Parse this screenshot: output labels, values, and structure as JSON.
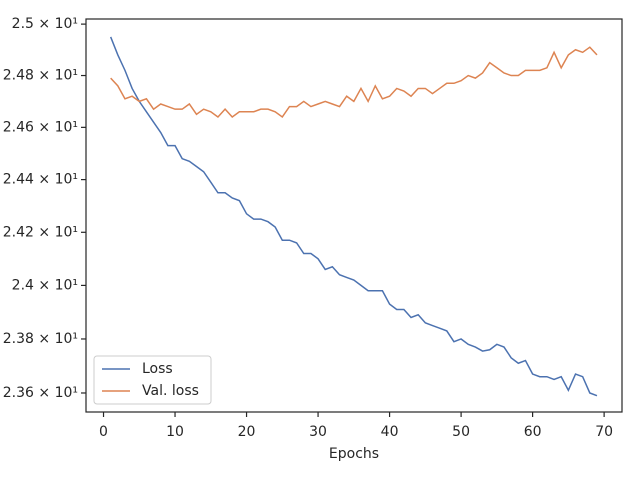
{
  "chart_data": {
    "type": "line",
    "x": [
      1,
      2,
      3,
      4,
      5,
      6,
      7,
      8,
      9,
      10,
      11,
      12,
      13,
      14,
      15,
      16,
      17,
      18,
      19,
      20,
      21,
      22,
      23,
      24,
      25,
      26,
      27,
      28,
      29,
      30,
      31,
      32,
      33,
      34,
      35,
      36,
      37,
      38,
      39,
      40,
      41,
      42,
      43,
      44,
      45,
      46,
      47,
      48,
      49,
      50,
      51,
      52,
      53,
      54,
      55,
      56,
      57,
      58,
      59,
      60,
      61,
      62,
      63,
      64,
      65,
      66,
      67,
      68,
      69
    ],
    "series": [
      {
        "name": "Loss",
        "color": "#4c72b0",
        "values": [
          24.95,
          24.88,
          24.82,
          24.75,
          24.7,
          24.66,
          24.62,
          24.58,
          24.53,
          24.53,
          24.48,
          24.47,
          24.45,
          24.43,
          24.39,
          24.35,
          24.35,
          24.33,
          24.32,
          24.27,
          24.25,
          24.25,
          24.24,
          24.22,
          24.17,
          24.17,
          24.16,
          24.12,
          24.12,
          24.1,
          24.06,
          24.07,
          24.04,
          24.03,
          24.02,
          24.0,
          23.98,
          23.98,
          23.98,
          23.93,
          23.91,
          23.91,
          23.88,
          23.89,
          23.86,
          23.85,
          23.84,
          23.83,
          23.79,
          23.8,
          23.78,
          23.77,
          23.755,
          23.76,
          23.78,
          23.77,
          23.73,
          23.71,
          23.72,
          23.67,
          23.66,
          23.66,
          23.65,
          23.66,
          23.61,
          23.67,
          23.66,
          23.6,
          23.59
        ]
      },
      {
        "name": "Val. loss",
        "color": "#dd8452",
        "values": [
          24.79,
          24.76,
          24.71,
          24.72,
          24.7,
          24.71,
          24.67,
          24.69,
          24.68,
          24.67,
          24.67,
          24.69,
          24.65,
          24.67,
          24.66,
          24.64,
          24.67,
          24.64,
          24.66,
          24.66,
          24.66,
          24.67,
          24.67,
          24.66,
          24.64,
          24.68,
          24.68,
          24.7,
          24.68,
          24.69,
          24.7,
          24.69,
          24.68,
          24.72,
          24.7,
          24.75,
          24.7,
          24.76,
          24.71,
          24.72,
          24.75,
          24.74,
          24.72,
          24.75,
          24.75,
          24.73,
          24.75,
          24.77,
          24.77,
          24.78,
          24.8,
          24.79,
          24.81,
          24.85,
          24.83,
          24.81,
          24.8,
          24.8,
          24.82,
          24.82,
          24.82,
          24.83,
          24.89,
          24.83,
          24.88,
          24.9,
          24.89,
          24.91,
          24.88
        ]
      }
    ],
    "x_label": "Epochs",
    "xlim": [
      -2.45,
      72.5
    ],
    "xticks": [
      0,
      10,
      20,
      30,
      40,
      50,
      60,
      70
    ],
    "ylim": [
      23.53,
      25.02
    ],
    "log_scale": true,
    "yticks": [
      {
        "value": 23.6,
        "label": "2.36 × 10¹"
      },
      {
        "value": 23.8,
        "label": "2.38 × 10¹"
      },
      {
        "value": 24,
        "label": "2.4 × 10¹"
      },
      {
        "value": 24.2,
        "label": "2.42 × 10¹"
      },
      {
        "value": 24.4,
        "label": "2.44 × 10¹"
      },
      {
        "value": 24.6,
        "label": "2.46 × 10¹"
      },
      {
        "value": 24.8,
        "label": "2.48 × 10¹"
      },
      {
        "value": 25,
        "label": "2.5 × 10¹"
      }
    ],
    "legend": "lower left"
  }
}
